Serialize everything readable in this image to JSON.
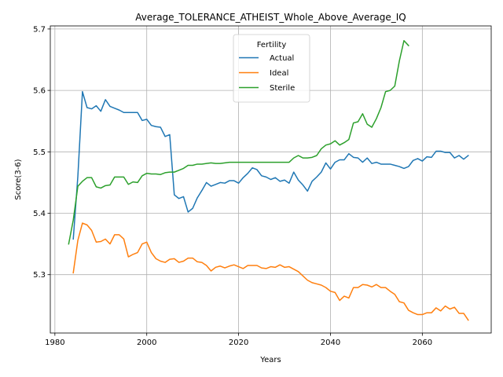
{
  "chart_data": {
    "type": "line",
    "title": "Average_TOLERANCE_ATHEIST_Whole_Above_Average_IQ",
    "xlabel": "Years",
    "ylabel": "Score(3-6)",
    "xlim": [
      1979,
      2075
    ],
    "ylim": [
      5.205,
      5.705
    ],
    "xticks": [
      1980,
      2000,
      2020,
      2040,
      2060
    ],
    "xtick_labels": [
      "1980",
      "2000",
      "2020",
      "2040",
      "2060"
    ],
    "yticks": [
      5.3,
      5.4,
      5.5,
      5.6,
      5.7
    ],
    "ytick_labels": [
      "5.3",
      "5.4",
      "5.5",
      "5.6",
      "5.7"
    ],
    "grid": true,
    "legend": {
      "title": "Fertility",
      "position": "upper center"
    },
    "series": [
      {
        "name": "Actual",
        "color": "#1f77b4",
        "points": [
          [
            1984,
            5.358
          ],
          [
            1985,
            5.46
          ],
          [
            1986,
            5.598
          ],
          [
            1987,
            5.572
          ],
          [
            1988,
            5.57
          ],
          [
            1989,
            5.575
          ],
          [
            1990,
            5.566
          ],
          [
            1991,
            5.585
          ],
          [
            1992,
            5.574
          ],
          [
            1993,
            5.571
          ],
          [
            1994,
            5.568
          ],
          [
            1995,
            5.564
          ],
          [
            1996,
            5.564
          ],
          [
            1997,
            5.564
          ],
          [
            1998,
            5.564
          ],
          [
            1999,
            5.551
          ],
          [
            2000,
            5.553
          ],
          [
            2001,
            5.543
          ],
          [
            2002,
            5.541
          ],
          [
            2003,
            5.54
          ],
          [
            2004,
            5.525
          ],
          [
            2005,
            5.528
          ],
          [
            2006,
            5.43
          ],
          [
            2007,
            5.424
          ],
          [
            2008,
            5.427
          ],
          [
            2009,
            5.402
          ],
          [
            2010,
            5.408
          ],
          [
            2011,
            5.425
          ],
          [
            2012,
            5.437
          ],
          [
            2013,
            5.45
          ],
          [
            2014,
            5.444
          ],
          [
            2015,
            5.447
          ],
          [
            2016,
            5.45
          ],
          [
            2017,
            5.449
          ],
          [
            2018,
            5.453
          ],
          [
            2019,
            5.453
          ],
          [
            2020,
            5.449
          ],
          [
            2021,
            5.458
          ],
          [
            2022,
            5.465
          ],
          [
            2023,
            5.474
          ],
          [
            2024,
            5.471
          ],
          [
            2025,
            5.461
          ],
          [
            2026,
            5.459
          ],
          [
            2027,
            5.455
          ],
          [
            2028,
            5.458
          ],
          [
            2029,
            5.452
          ],
          [
            2030,
            5.454
          ],
          [
            2031,
            5.449
          ],
          [
            2032,
            5.467
          ],
          [
            2033,
            5.454
          ],
          [
            2034,
            5.446
          ],
          [
            2035,
            5.436
          ],
          [
            2036,
            5.452
          ],
          [
            2037,
            5.459
          ],
          [
            2038,
            5.467
          ],
          [
            2039,
            5.482
          ],
          [
            2040,
            5.472
          ],
          [
            2041,
            5.483
          ],
          [
            2042,
            5.487
          ],
          [
            2043,
            5.487
          ],
          [
            2044,
            5.497
          ],
          [
            2045,
            5.491
          ],
          [
            2046,
            5.49
          ],
          [
            2047,
            5.483
          ],
          [
            2048,
            5.49
          ],
          [
            2049,
            5.481
          ],
          [
            2050,
            5.483
          ],
          [
            2051,
            5.48
          ],
          [
            2052,
            5.48
          ],
          [
            2053,
            5.48
          ],
          [
            2054,
            5.478
          ],
          [
            2055,
            5.476
          ],
          [
            2056,
            5.473
          ],
          [
            2057,
            5.476
          ],
          [
            2058,
            5.486
          ],
          [
            2059,
            5.489
          ],
          [
            2060,
            5.485
          ],
          [
            2061,
            5.492
          ],
          [
            2062,
            5.491
          ],
          [
            2063,
            5.501
          ],
          [
            2064,
            5.501
          ],
          [
            2065,
            5.499
          ],
          [
            2066,
            5.499
          ],
          [
            2067,
            5.49
          ],
          [
            2068,
            5.494
          ],
          [
            2069,
            5.488
          ],
          [
            2070,
            5.494
          ]
        ]
      },
      {
        "name": "Ideal",
        "color": "#ff7f0e",
        "points": [
          [
            1984,
            5.303
          ],
          [
            1985,
            5.356
          ],
          [
            1986,
            5.384
          ],
          [
            1987,
            5.381
          ],
          [
            1988,
            5.372
          ],
          [
            1989,
            5.353
          ],
          [
            1990,
            5.354
          ],
          [
            1991,
            5.358
          ],
          [
            1992,
            5.35
          ],
          [
            1993,
            5.365
          ],
          [
            1994,
            5.365
          ],
          [
            1995,
            5.358
          ],
          [
            1996,
            5.329
          ],
          [
            1997,
            5.333
          ],
          [
            1998,
            5.336
          ],
          [
            1999,
            5.35
          ],
          [
            2000,
            5.353
          ],
          [
            2001,
            5.336
          ],
          [
            2002,
            5.326
          ],
          [
            2003,
            5.322
          ],
          [
            2004,
            5.32
          ],
          [
            2005,
            5.325
          ],
          [
            2006,
            5.326
          ],
          [
            2007,
            5.32
          ],
          [
            2008,
            5.322
          ],
          [
            2009,
            5.327
          ],
          [
            2010,
            5.327
          ],
          [
            2011,
            5.321
          ],
          [
            2012,
            5.32
          ],
          [
            2013,
            5.315
          ],
          [
            2014,
            5.306
          ],
          [
            2015,
            5.312
          ],
          [
            2016,
            5.314
          ],
          [
            2017,
            5.311
          ],
          [
            2018,
            5.314
          ],
          [
            2019,
            5.316
          ],
          [
            2020,
            5.313
          ],
          [
            2021,
            5.31
          ],
          [
            2022,
            5.315
          ],
          [
            2023,
            5.315
          ],
          [
            2024,
            5.315
          ],
          [
            2025,
            5.311
          ],
          [
            2026,
            5.31
          ],
          [
            2027,
            5.313
          ],
          [
            2028,
            5.312
          ],
          [
            2029,
            5.316
          ],
          [
            2030,
            5.312
          ],
          [
            2031,
            5.313
          ],
          [
            2032,
            5.309
          ],
          [
            2033,
            5.305
          ],
          [
            2034,
            5.298
          ],
          [
            2035,
            5.291
          ],
          [
            2036,
            5.287
          ],
          [
            2037,
            5.285
          ],
          [
            2038,
            5.283
          ],
          [
            2039,
            5.279
          ],
          [
            2040,
            5.273
          ],
          [
            2041,
            5.271
          ],
          [
            2042,
            5.258
          ],
          [
            2043,
            5.265
          ],
          [
            2044,
            5.262
          ],
          [
            2045,
            5.279
          ],
          [
            2046,
            5.279
          ],
          [
            2047,
            5.284
          ],
          [
            2048,
            5.283
          ],
          [
            2049,
            5.28
          ],
          [
            2050,
            5.284
          ],
          [
            2051,
            5.279
          ],
          [
            2052,
            5.279
          ],
          [
            2053,
            5.273
          ],
          [
            2054,
            5.268
          ],
          [
            2055,
            5.256
          ],
          [
            2056,
            5.254
          ],
          [
            2057,
            5.242
          ],
          [
            2058,
            5.238
          ],
          [
            2059,
            5.235
          ],
          [
            2060,
            5.235
          ],
          [
            2061,
            5.238
          ],
          [
            2062,
            5.238
          ],
          [
            2063,
            5.246
          ],
          [
            2064,
            5.241
          ],
          [
            2065,
            5.249
          ],
          [
            2066,
            5.244
          ],
          [
            2067,
            5.247
          ],
          [
            2068,
            5.237
          ],
          [
            2069,
            5.237
          ],
          [
            2070,
            5.226
          ]
        ]
      },
      {
        "name": "Sterile",
        "color": "#2ca02c",
        "points": [
          [
            1983,
            5.35
          ],
          [
            1984,
            5.389
          ],
          [
            1985,
            5.444
          ],
          [
            1986,
            5.452
          ],
          [
            1987,
            5.458
          ],
          [
            1988,
            5.458
          ],
          [
            1989,
            5.443
          ],
          [
            1990,
            5.441
          ],
          [
            1991,
            5.445
          ],
          [
            1992,
            5.446
          ],
          [
            1993,
            5.459
          ],
          [
            1994,
            5.459
          ],
          [
            1995,
            5.459
          ],
          [
            1996,
            5.447
          ],
          [
            1997,
            5.451
          ],
          [
            1998,
            5.45
          ],
          [
            1999,
            5.461
          ],
          [
            2000,
            5.465
          ],
          [
            2001,
            5.464
          ],
          [
            2002,
            5.464
          ],
          [
            2003,
            5.463
          ],
          [
            2004,
            5.466
          ],
          [
            2005,
            5.467
          ],
          [
            2006,
            5.467
          ],
          [
            2007,
            5.47
          ],
          [
            2008,
            5.473
          ],
          [
            2009,
            5.478
          ],
          [
            2010,
            5.478
          ],
          [
            2011,
            5.48
          ],
          [
            2012,
            5.48
          ],
          [
            2013,
            5.481
          ],
          [
            2014,
            5.482
          ],
          [
            2015,
            5.481
          ],
          [
            2016,
            5.481
          ],
          [
            2017,
            5.482
          ],
          [
            2018,
            5.483
          ],
          [
            2019,
            5.483
          ],
          [
            2020,
            5.483
          ],
          [
            2021,
            5.483
          ],
          [
            2022,
            5.483
          ],
          [
            2023,
            5.483
          ],
          [
            2024,
            5.483
          ],
          [
            2025,
            5.483
          ],
          [
            2026,
            5.483
          ],
          [
            2027,
            5.483
          ],
          [
            2028,
            5.483
          ],
          [
            2029,
            5.483
          ],
          [
            2030,
            5.483
          ],
          [
            2031,
            5.483
          ],
          [
            2032,
            5.49
          ],
          [
            2033,
            5.494
          ],
          [
            2034,
            5.49
          ],
          [
            2035,
            5.49
          ],
          [
            2036,
            5.491
          ],
          [
            2037,
            5.494
          ],
          [
            2038,
            5.505
          ],
          [
            2039,
            5.511
          ],
          [
            2040,
            5.513
          ],
          [
            2041,
            5.518
          ],
          [
            2042,
            5.511
          ],
          [
            2043,
            5.515
          ],
          [
            2044,
            5.52
          ],
          [
            2045,
            5.547
          ],
          [
            2046,
            5.549
          ],
          [
            2047,
            5.562
          ],
          [
            2048,
            5.545
          ],
          [
            2049,
            5.54
          ],
          [
            2050,
            5.554
          ],
          [
            2051,
            5.572
          ],
          [
            2052,
            5.598
          ],
          [
            2053,
            5.6
          ],
          [
            2054,
            5.607
          ],
          [
            2055,
            5.648
          ],
          [
            2056,
            5.681
          ],
          [
            2057,
            5.673
          ]
        ]
      }
    ]
  }
}
